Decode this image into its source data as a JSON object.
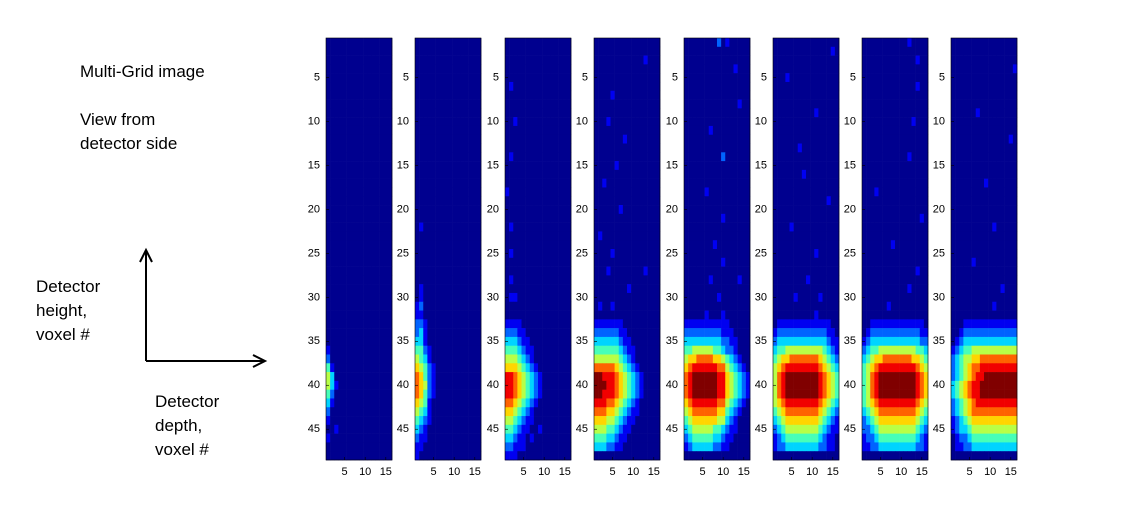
{
  "chart_data": {
    "type": "heatmap",
    "annotations": [
      "Multi-Grid image",
      "View from detector side",
      "Detector height, voxel #",
      "Detector depth, voxel #"
    ],
    "xlim": [
      0.5,
      16.5
    ],
    "ylim": [
      0.5,
      48.5
    ],
    "xticks": [
      5,
      10,
      15
    ],
    "yticks": [
      5,
      10,
      15,
      20,
      25,
      30,
      35,
      40,
      45
    ],
    "panels": [
      {
        "rows": [
          "0000000000000000",
          "0000000000000000",
          "0000000000000000",
          "0000000000000000",
          "0000000000000000",
          "0000000000000000",
          "0000000000000000",
          "0000000000000000",
          "0000000000000000",
          "0000000000000000",
          "0000000000000000",
          "0000000000000000",
          "0000000000000000",
          "0000000000000000",
          "0000000000000000",
          "0000000000000000",
          "0000000000000000",
          "0000000000000000",
          "0000000000000000",
          "0000000000000000",
          "0000000000000000",
          "0000000000000000",
          "0000000000000000",
          "0000000000000000",
          "0000000000000000",
          "0000000000000000",
          "0000000000000000",
          "0000000000000000",
          "0000000000000000",
          "0000000000000000",
          "0000000000000000",
          "0000000000000000",
          "0000000000000000",
          "0000000000000000",
          "0000000000000000",
          "1000000000000000",
          "2000000000000000",
          "4100000000000000",
          "5300000000000000",
          "5310000000000000",
          "4200000000000000",
          "3100000000000000",
          "2000000000000000",
          "1000000000000000",
          "0010000000000000",
          "1000000000000000",
          "0000000000000000",
          "0000000000000000"
        ]
      },
      {
        "rows": [
          "0000000000000000",
          "0000000000000000",
          "0000000000000000",
          "0000000000000000",
          "0000000000000000",
          "0000000000000000",
          "0000000000000000",
          "0000000000000000",
          "0000000000000000",
          "0000000000000000",
          "0000000000000000",
          "0000000000000000",
          "0000000000000000",
          "0000000000000000",
          "0000000000000000",
          "0000000000000000",
          "0000000000000000",
          "0000000000000000",
          "0000000000000000",
          "0000000000000000",
          "0000000000000000",
          "0100000000000000",
          "0000000000000000",
          "0000000000000000",
          "0000000000000000",
          "0000000000000000",
          "0000000000000000",
          "0000000000000000",
          "0100000000000000",
          "0100000000000000",
          "1200000000000000",
          "1100000000000000",
          "2210000000000000",
          "2310000000000000",
          "3310000000000000",
          "4421000000000000",
          "5431000000000000",
          "6542100000000000",
          "7642100000000000",
          "7652100000000000",
          "7642100000000000",
          "6541000000000000",
          "5431000000000000",
          "4321000000000000",
          "3210000000000000",
          "2110000000000000",
          "1100000000000000",
          "1000000000000000"
        ]
      },
      {
        "rows": [
          "0000000000000000",
          "0000000000000000",
          "0000000000000000",
          "0000000000000000",
          "0000000000000000",
          "0100000000000000",
          "0000000000000000",
          "0000000000000000",
          "0000000000000000",
          "0010000000000000",
          "0000000000000000",
          "0000000000000000",
          "0000000000000000",
          "0100000000000000",
          "0000000000000000",
          "0000000000000000",
          "0000000000000000",
          "1000000000000000",
          "0000000000000000",
          "0000000000000000",
          "0000000000000000",
          "0100000000000000",
          "0000000000000000",
          "0000000000000000",
          "0100000000000000",
          "0000000000000000",
          "0000000000000000",
          "0100000000000000",
          "0000000000000000",
          "0110000000000000",
          "0000000000000000",
          "0000000000000000",
          "1111000000000000",
          "2221100000000000",
          "3332110000000000",
          "4443211000000000",
          "5554321000000000",
          "6665432100000000",
          "8876543210000000",
          "8876543210000000",
          "8876543210000000",
          "7765432100000000",
          "6654321000000000",
          "5543211000000000",
          "4432110010000000",
          "3321101000000000",
          "2211100000000000",
          "1110000000000000"
        ]
      },
      {
        "rows": [
          "0000000000000000",
          "0000000000000000",
          "0000000000001000",
          "0000000000000000",
          "0000000000000000",
          "0000000000000000",
          "0000100000000000",
          "0000000000000000",
          "0000000000000000",
          "0001000000000000",
          "0000000000000000",
          "0000000100000000",
          "0000000000000000",
          "0000000000000000",
          "0000010000000000",
          "0000000000000000",
          "0010000000000000",
          "0000000000000000",
          "0000000000000000",
          "0000001000000000",
          "0000000000000000",
          "0000000000000000",
          "0100000000000000",
          "0000000000000000",
          "0000100000000000",
          "0000000000000000",
          "0001000000001000",
          "0000000000000000",
          "0000000010000000",
          "0000000000000000",
          "0100100000000000",
          "0000000000000000",
          "1111111000000000",
          "2222221100000000",
          "3333332110000000",
          "4444443211000000",
          "5555554321000000",
          "7777765432100000",
          "9988876543210000",
          "9998876543210000",
          "9988876543210000",
          "8887765432100000",
          "7776654321100000",
          "6665543211000000",
          "5554432110000000",
          "4443321100000000",
          "3332211000000000",
          "0000000000000000"
        ]
      },
      {
        "rows": [
          "0000000020100000",
          "0000000000000000",
          "0000000000000000",
          "0000000000001000",
          "0000000000000000",
          "0000000000000000",
          "0000000000000000",
          "0000000000000100",
          "0000000000000000",
          "0000000000000000",
          "0000001000000000",
          "0000000000000000",
          "0000000000000000",
          "0000000002000000",
          "0000000000000000",
          "0000000000000000",
          "0000000000000000",
          "0000010000000000",
          "0000000000000000",
          "0000000000000000",
          "0000000001000000",
          "0000000000000000",
          "0000000000000000",
          "0000000100000000",
          "0000000000000000",
          "0000000001000000",
          "0000000000000000",
          "0000001000000100",
          "0000000000000000",
          "0000000010000000",
          "0000000000000000",
          "0000010001000000",
          "1111111111100000",
          "2222222221110000",
          "3333333332211000",
          "4455555443221000",
          "5667777665432100",
          "6788888877543210",
          "7899999988654321",
          "7899999988654321",
          "7899999988654321",
          "6788888877543210",
          "5677777766432100",
          "4566666655321000",
          "3455555443211000",
          "2344444332110000",
          "1233333221100000",
          "0000000000000000"
        ]
      },
      {
        "rows": [
          "0000000000000000",
          "0000000000000010",
          "0000000000000000",
          "0000000000000000",
          "0001000000000000",
          "0000000000000000",
          "0000000000000000",
          "0000000000000000",
          "0000000000100000",
          "0000000000000000",
          "0000000000000000",
          "0000000000000000",
          "0000001000000000",
          "0000000000000000",
          "0000000000000000",
          "0000000100000000",
          "0000000000000000",
          "0000000000000000",
          "0000000000000100",
          "0000000000000000",
          "0000000000000000",
          "0000100000000000",
          "0000000000000000",
          "0000000000000000",
          "0000000000100000",
          "0000000000000000",
          "0000000000000000",
          "0000000010000000",
          "0000000000000000",
          "0000010000010000",
          "0000000000000000",
          "0000000000100000",
          "0111111111111100",
          "1222222222222110",
          "2333333333333211",
          "3445555555554321",
          "4566777777765432",
          "5678888888876543",
          "5789999999987654",
          "5789999999987654",
          "5789999999987654",
          "5678888888876543",
          "4567777777765432",
          "3456666666654321",
          "2345555555543211",
          "1234444444432110",
          "1223333333322110",
          "0000000000000000"
        ]
      },
      {
        "rows": [
          "0000000000010000",
          "0000000000000000",
          "0000000000000100",
          "0000000000000000",
          "0000000000000000",
          "0000000000000100",
          "0000000000000000",
          "0000000000000000",
          "0000000000000000",
          "0000000000001000",
          "0000000000000000",
          "0000000000000000",
          "0000000000000000",
          "0000000000010000",
          "0000000000000000",
          "0000000000000000",
          "0000000000000000",
          "0001000000000000",
          "0000000000000000",
          "0000000000000000",
          "0000000000000010",
          "0000000000000000",
          "0000000000000000",
          "0000000100000000",
          "0000000000000000",
          "0000000000000000",
          "0000000000000100",
          "0000000000000000",
          "0000000000010000",
          "0000000000000000",
          "0000001000000000",
          "0000000000000000",
          "0011111111111110",
          "0122222222222211",
          "1233333333333322",
          "2344555555555443",
          "3456677777776654",
          "4567888888888765",
          "4578999999999876",
          "4578999999999876",
          "4578999999999876",
          "4567888888888765",
          "3456777777777654",
          "2345666666666543",
          "2234555555555432",
          "1223444444444321",
          "1122333333333221",
          "0000000000000000"
        ]
      },
      {
        "rows": [
          "0000000000000000",
          "0000000000000000",
          "0000000000000000",
          "0000000000000001",
          "0000000000000000",
          "0000000000000000",
          "0000000000000000",
          "0000000000000000",
          "0000001000000000",
          "0000000000000000",
          "0000000000000000",
          "0000000000000010",
          "0000000000000000",
          "0000000000000000",
          "0000000000000000",
          "0000000000000000",
          "0000000010000000",
          "0000000000000000",
          "0000000000000000",
          "0000000000000000",
          "0000000000000000",
          "0000000000100000",
          "0000000000000000",
          "0000000000000000",
          "0000000000000000",
          "0000010000000000",
          "0000000000000000",
          "0000000000000000",
          "0000000000001000",
          "0000000000000000",
          "0000000000100000",
          "0000000000000000",
          "0001111111111111",
          "0012222222222222",
          "0123333333333333",
          "1234455555555555",
          "2345566777777777",
          "2345677888888888",
          "2345678899999999",
          "3456788999999999",
          "3456788999999999",
          "2345678888888888",
          "2345677777777777",
          "1234566666666666",
          "1233455555555555",
          "0122344444444444",
          "0112233333333333",
          "0000000000000000"
        ]
      }
    ]
  }
}
